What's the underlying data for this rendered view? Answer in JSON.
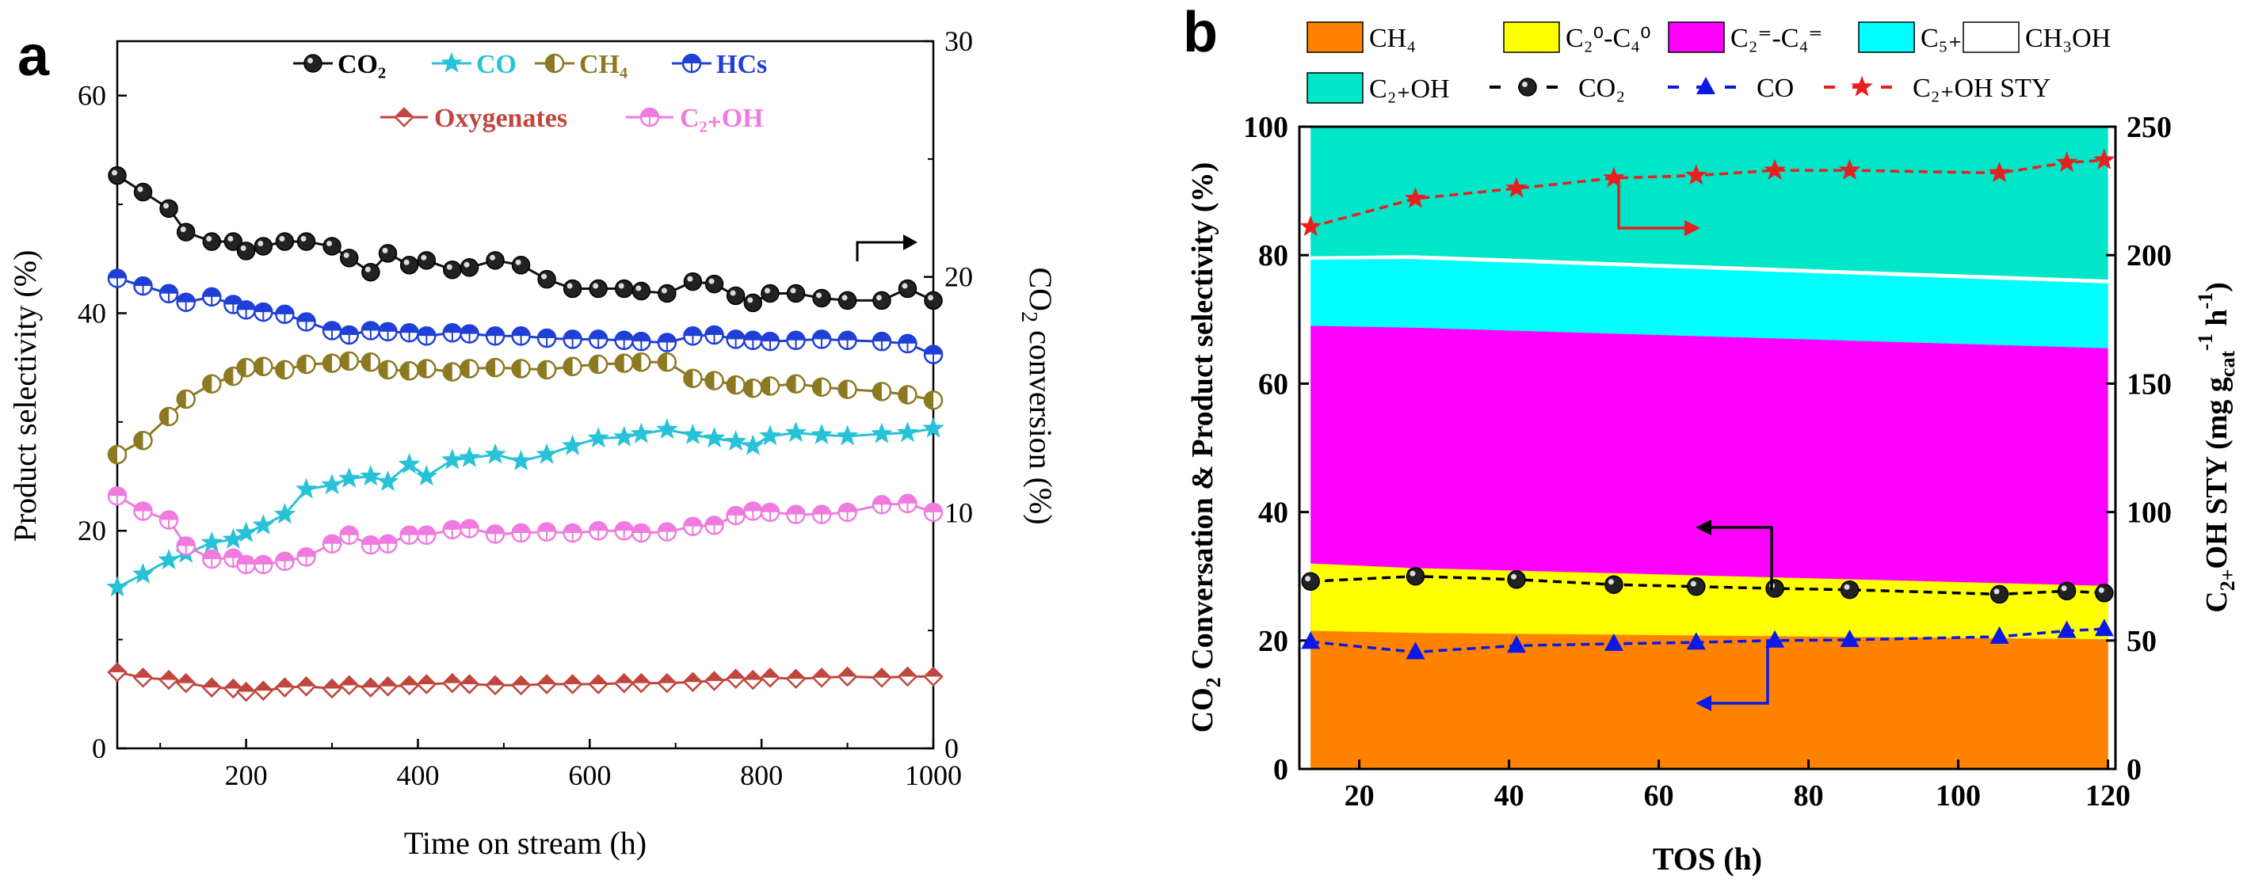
{
  "figure": {
    "panel_a_letter": "a",
    "panel_b_letter": "b"
  },
  "chart_data": [
    {
      "type": "line",
      "panel": "a",
      "xlabel": "Time on stream (h)",
      "ylabel_left": "Product selectivity (%)",
      "ylabel_right": "CO2 conversion (%)",
      "xlim": [
        50,
        1000
      ],
      "ylim_left": [
        0,
        65
      ],
      "ylim_right": [
        0,
        30
      ],
      "xticks": [
        "200",
        "400",
        "600",
        "800",
        "1000"
      ],
      "yticks_left": [
        "0",
        "20",
        "40",
        "60"
      ],
      "yticks_right": [
        "0",
        "10",
        "20",
        "30"
      ],
      "x": [
        50,
        80,
        110,
        130,
        160,
        185,
        200,
        220,
        245,
        270,
        300,
        320,
        345,
        365,
        390,
        410,
        440,
        460,
        490,
        520,
        550,
        580,
        610,
        640,
        660,
        690,
        720,
        745,
        770,
        790,
        810,
        840,
        870,
        900,
        940,
        970,
        1000
      ],
      "series": [
        {
          "name": "CO2",
          "legend": "CO₂",
          "axis": "right",
          "color": "#111111",
          "marker": "ball",
          "values": [
            24.3,
            23.6,
            22.9,
            21.9,
            21.5,
            21.5,
            21.1,
            21.3,
            21.5,
            21.5,
            21.3,
            20.8,
            20.2,
            21.0,
            20.5,
            20.7,
            20.3,
            20.4,
            20.7,
            20.5,
            19.9,
            19.5,
            19.5,
            19.5,
            19.4,
            19.3,
            19.8,
            19.7,
            19.2,
            18.9,
            19.3,
            19.3,
            19.1,
            19.0,
            19.0,
            19.5,
            19.0
          ]
        },
        {
          "name": "CO",
          "legend": "CO",
          "axis": "left",
          "color": "#27c2d8",
          "marker": "star",
          "values": [
            14.8,
            16.0,
            17.3,
            17.9,
            18.9,
            19.2,
            19.8,
            20.5,
            21.5,
            23.8,
            24.2,
            24.8,
            25.0,
            24.5,
            26.1,
            25.0,
            26.5,
            26.7,
            27.0,
            26.4,
            27.0,
            27.8,
            28.5,
            28.6,
            28.9,
            29.3,
            28.8,
            28.5,
            28.2,
            27.8,
            28.7,
            29.0,
            28.8,
            28.7,
            28.9,
            29.0,
            29.4
          ]
        },
        {
          "name": "CH4",
          "legend": "CH₄",
          "axis": "left",
          "color": "#8c7a22",
          "marker": "half-v",
          "values": [
            27.0,
            28.3,
            30.5,
            32.1,
            33.5,
            34.2,
            35.0,
            35.1,
            34.8,
            35.3,
            35.4,
            35.6,
            35.5,
            34.8,
            34.7,
            34.9,
            34.6,
            34.9,
            35.0,
            34.9,
            34.8,
            35.1,
            35.3,
            35.4,
            35.5,
            35.5,
            34.0,
            33.8,
            33.4,
            33.1,
            33.3,
            33.5,
            33.2,
            33.0,
            32.8,
            32.5,
            32.0
          ]
        },
        {
          "name": "HCs",
          "legend": "HCs",
          "axis": "left",
          "color": "#1f3fd6",
          "marker": "half-h",
          "values": [
            43.2,
            42.5,
            41.8,
            41.0,
            41.5,
            40.8,
            40.3,
            40.1,
            39.9,
            39.2,
            38.4,
            38.0,
            38.4,
            38.3,
            38.2,
            37.9,
            38.2,
            38.1,
            37.9,
            37.9,
            37.7,
            37.6,
            37.6,
            37.5,
            37.4,
            37.3,
            37.9,
            38.0,
            37.6,
            37.5,
            37.4,
            37.5,
            37.6,
            37.5,
            37.4,
            37.2,
            36.2
          ]
        },
        {
          "name": "Oxygenates",
          "legend": "Oxygenates",
          "axis": "left",
          "color": "#c0463e",
          "marker": "diamond",
          "values": [
            7.0,
            6.5,
            6.3,
            6.0,
            5.6,
            5.5,
            5.2,
            5.3,
            5.6,
            5.7,
            5.5,
            5.8,
            5.6,
            5.7,
            5.8,
            5.9,
            6.0,
            5.9,
            5.8,
            5.8,
            5.9,
            5.9,
            5.9,
            6.0,
            6.0,
            6.0,
            6.1,
            6.2,
            6.4,
            6.3,
            6.5,
            6.4,
            6.5,
            6.6,
            6.5,
            6.6,
            6.6
          ]
        },
        {
          "name": "C2+OH",
          "legend": "C₂₊OH",
          "axis": "left",
          "color": "#f07be0",
          "marker": "half-h",
          "values": [
            23.2,
            21.8,
            21.0,
            18.6,
            17.4,
            17.5,
            16.9,
            16.9,
            17.2,
            17.6,
            18.8,
            19.6,
            18.7,
            18.8,
            19.6,
            19.6,
            20.1,
            20.2,
            19.7,
            19.8,
            19.9,
            19.8,
            20.0,
            20.0,
            19.8,
            19.9,
            20.4,
            20.5,
            21.4,
            21.8,
            21.7,
            21.5,
            21.5,
            21.7,
            22.4,
            22.5,
            21.7
          ]
        }
      ]
    },
    {
      "type": "area",
      "panel": "b",
      "xlabel": "TOS (h)",
      "ylabel_left": "CO2 Conversation & Product selectivity (%)",
      "ylabel_right": "C2+OH STY (mg gcat-1 h-1)",
      "xlim": [
        12,
        121
      ],
      "ylim_left": [
        0,
        100
      ],
      "ylim_right": [
        0,
        250
      ],
      "xticks": [
        "20",
        "40",
        "60",
        "80",
        "100",
        "120"
      ],
      "yticks_left": [
        "0",
        "20",
        "40",
        "60",
        "80",
        "100"
      ],
      "yticks_right": [
        "0",
        "50",
        "100",
        "150",
        "200",
        "250"
      ],
      "area_x": [
        13.5,
        27,
        120
      ],
      "stacked_bounds": [
        {
          "name": "CH4",
          "color": "#ff8200",
          "upper": [
            21.5,
            21.2,
            20.2
          ]
        },
        {
          "name": "C2-0-C4-0",
          "color": "#ffff00",
          "upper": [
            32.0,
            31.3,
            28.5
          ]
        },
        {
          "name": "C2=-C4=",
          "color": "#ff00ff",
          "upper": [
            69.0,
            68.7,
            65.5
          ]
        },
        {
          "name": "C5+",
          "color": "#00ffff",
          "upper": [
            79.3,
            79.4,
            75.6
          ]
        },
        {
          "name": "CH3OH",
          "color": "#ffffff",
          "upper": [
            79.8,
            80.0,
            76.2
          ]
        },
        {
          "name": "C2+OH",
          "color": "#00e6c8",
          "upper": [
            100,
            100,
            100
          ]
        }
      ],
      "points_x": [
        13.5,
        27.5,
        41,
        54,
        65,
        75.5,
        85.5,
        105.5,
        114.5,
        119.5
      ],
      "lines": [
        {
          "name": "CO2",
          "axis": "left",
          "color": "#000000",
          "marker": "ball",
          "values": [
            29.2,
            30.0,
            29.5,
            28.7,
            28.4,
            28.1,
            27.9,
            27.2,
            27.7,
            27.4
          ]
        },
        {
          "name": "CO",
          "axis": "left",
          "color": "#0b18e8",
          "marker": "triangle",
          "values": [
            19.8,
            18.2,
            19.2,
            19.5,
            19.7,
            20.0,
            20.1,
            20.6,
            21.5,
            21.8
          ]
        },
        {
          "name": "C2+OH STY",
          "axis": "right",
          "color": "#e81f1f",
          "marker": "star",
          "values": [
            211,
            222,
            226,
            230,
            231,
            233,
            233,
            232,
            236,
            237
          ]
        }
      ],
      "legend": {
        "CH4": "CH₄",
        "C2-0-C4-0": "C₂⁰-C₄⁰",
        "C2=-C4=": "C₂⁼-C₄⁼",
        "C5+": "C₅₊",
        "CH3OH": "CH₃OH",
        "C2+OH": "C₂₊OH",
        "CO2": "CO₂",
        "CO": "CO",
        "C2+OH STY": "C₂₊OH STY"
      }
    }
  ]
}
